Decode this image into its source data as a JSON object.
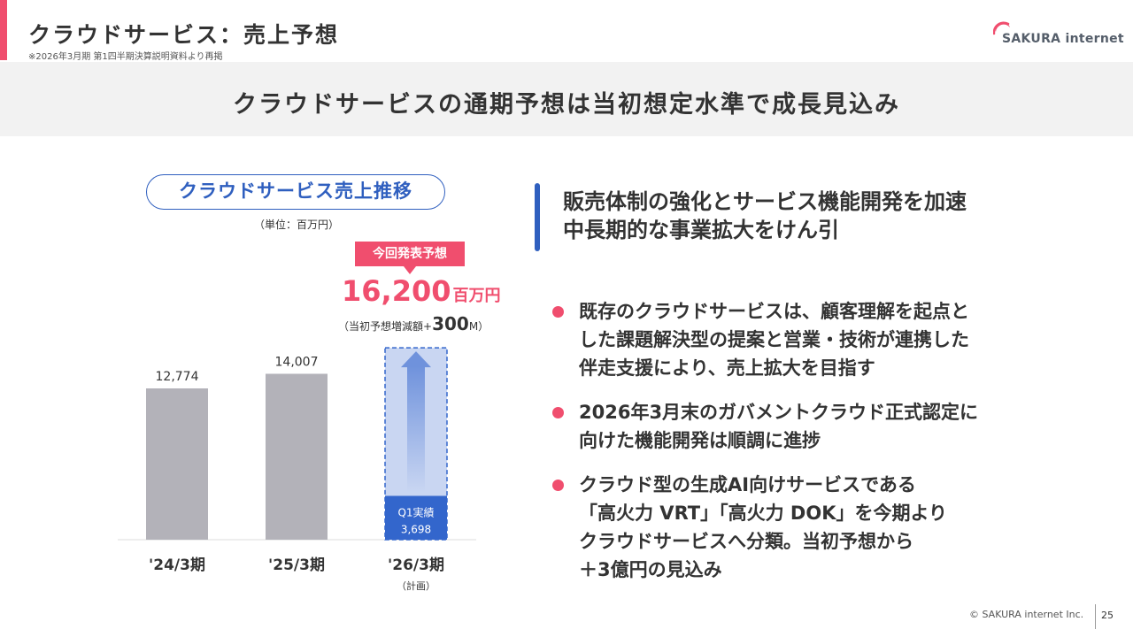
{
  "header": {
    "title": "クラウドサービス：売上予想",
    "note": "※2026年3月期 第1四半期決算説明資料より再掲",
    "logo_text": "SAKURA internet",
    "accent_color": "#f04e6e"
  },
  "headline": "クラウドサービスの通期予想は当初想定水準で成長見込み",
  "chart_panel": {
    "title": "クラウドサービス売上推移",
    "unit": "（単位：百万円）",
    "callout": {
      "badge": "今回発表予想",
      "value": "16,200",
      "value_unit": "百万円",
      "diff_prefix": "（当初予想増減額+",
      "diff_value": "300",
      "diff_suffix": "M）"
    }
  },
  "chart_data": {
    "type": "bar",
    "categories": [
      "'24/3期",
      "'25/3期",
      "'26/3期"
    ],
    "category_sublabels": [
      "",
      "",
      "（計画）"
    ],
    "values": [
      12774,
      14007,
      16200
    ],
    "value_labels": [
      "12,774",
      "14,007",
      ""
    ],
    "q1_actual": {
      "label_line1": "Q1実績",
      "label_line2": "3,698",
      "value": 3698
    },
    "bar_colors": [
      "#b3b2b9",
      "#b3b2b9",
      "#c9d6f2"
    ],
    "q1_color": "#3366cc",
    "title": "クラウドサービス売上推移",
    "xlabel": "",
    "ylabel": "",
    "ylim": [
      0,
      17000
    ]
  },
  "right_panel": {
    "heading_lines": [
      "販売体制の強化とサービス機能開発を加速",
      "中長期的な事業拡大をけん引"
    ],
    "bullets": [
      {
        "lines": [
          "既存のクラウドサービスは、顧客理解を起点と",
          "した課題解決型の提案と営業・技術が連携した",
          "伴走支援により、売上拡大を目指す"
        ]
      },
      {
        "lines": [
          "2026年3月末のガバメントクラウド正式認定に",
          "向けた機能開発は順調に進捗"
        ]
      },
      {
        "lines": [
          "クラウド型の生成AI向けサービスである",
          "「高火力 VRT」「高火力 DOK」を今期より",
          "クラウドサービスへ分類。当初予想から",
          "＋3億円の見込み"
        ]
      }
    ]
  },
  "footer": {
    "copyright": "© SAKURA internet Inc.",
    "page_number": "25"
  }
}
